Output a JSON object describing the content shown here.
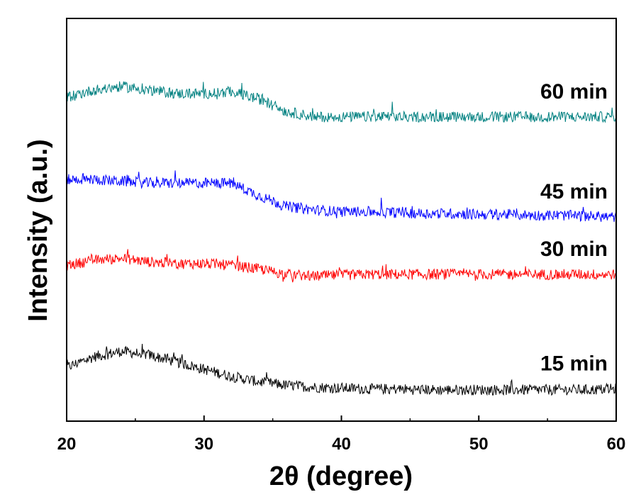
{
  "chart_data": {
    "type": "line",
    "xlabel": "2θ (degree)",
    "ylabel": "Intensity (a.u.)",
    "xlim": [
      20,
      60
    ],
    "x_ticks": [
      20,
      30,
      40,
      50,
      60
    ],
    "x_tick_labels": [
      "20",
      "30",
      "40",
      "50",
      "60"
    ],
    "y_ticks_shown": false,
    "grid": false,
    "legend": "none",
    "series": [
      {
        "name": "15 min",
        "color": "#000000",
        "x": [
          20,
          22,
          24,
          26,
          28,
          30,
          32,
          34,
          36,
          38,
          40,
          42,
          44,
          46,
          48,
          50,
          52,
          54,
          56,
          58,
          60
        ],
        "y": [
          0.6,
          0.72,
          0.78,
          0.74,
          0.66,
          0.58,
          0.5,
          0.44,
          0.4,
          0.38,
          0.37,
          0.36,
          0.36,
          0.35,
          0.35,
          0.35,
          0.35,
          0.35,
          0.35,
          0.35,
          0.36
        ]
      },
      {
        "name": "30 min",
        "color": "#ff0000",
        "x": [
          20,
          22,
          24,
          26,
          28,
          30,
          32,
          34,
          36,
          38,
          40,
          42,
          44,
          46,
          48,
          50,
          52,
          54,
          56,
          58,
          60
        ],
        "y": [
          1.74,
          1.8,
          1.82,
          1.78,
          1.76,
          1.76,
          1.74,
          1.7,
          1.64,
          1.62,
          1.63,
          1.64,
          1.64,
          1.64,
          1.64,
          1.64,
          1.64,
          1.64,
          1.64,
          1.64,
          1.64
        ]
      },
      {
        "name": "45 min",
        "color": "#0000ff",
        "x": [
          20,
          22,
          24,
          26,
          28,
          30,
          32,
          34,
          36,
          38,
          40,
          42,
          44,
          46,
          48,
          50,
          52,
          54,
          56,
          58,
          60
        ],
        "y": [
          2.7,
          2.7,
          2.68,
          2.66,
          2.66,
          2.66,
          2.66,
          2.52,
          2.4,
          2.36,
          2.34,
          2.34,
          2.33,
          2.32,
          2.32,
          2.31,
          2.31,
          2.3,
          2.3,
          2.29,
          2.28
        ]
      },
      {
        "name": "60 min",
        "color": "#008080",
        "x": [
          20,
          22,
          24,
          26,
          28,
          30,
          32,
          34,
          36,
          38,
          40,
          42,
          44,
          46,
          48,
          50,
          52,
          54,
          56,
          58,
          60
        ],
        "y": [
          3.62,
          3.7,
          3.74,
          3.7,
          3.66,
          3.66,
          3.68,
          3.6,
          3.46,
          3.4,
          3.4,
          3.4,
          3.4,
          3.4,
          3.4,
          3.4,
          3.4,
          3.4,
          3.4,
          3.4,
          3.4
        ]
      }
    ],
    "series_labels": [
      "60 min",
      "45 min",
      "30 min",
      "15 min"
    ]
  }
}
